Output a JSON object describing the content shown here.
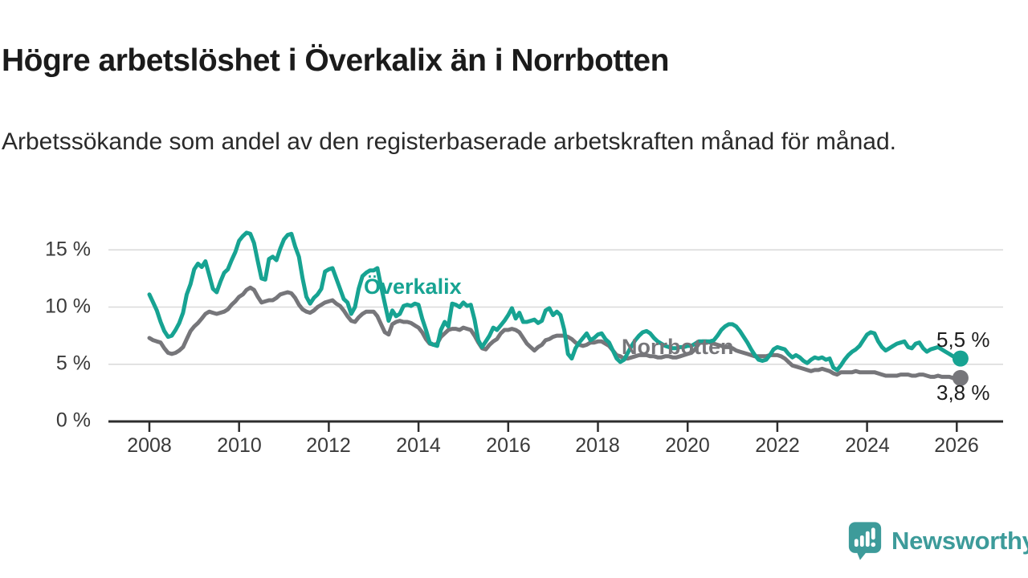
{
  "title": "Högre arbetslöshet i Överkalix än i Norrbotten",
  "subtitle": "Arbetssökande som andel av den registerbaserade arbetskraften månad för månad.",
  "branding": {
    "logo_text": "Newsworthy",
    "logo_color": "#3d9b9a"
  },
  "chart_data": {
    "type": "line",
    "title": "Högre arbetslöshet i Överkalix än i Norrbotten",
    "subtitle": "Arbetssökande som andel av den registerbaserade arbetskraften månad för månad.",
    "x_unit": "month",
    "x_start": "2008-01",
    "x_end": "2026-02",
    "x_ticks": [
      "2008",
      "2010",
      "2012",
      "2014",
      "2016",
      "2018",
      "2020",
      "2022",
      "2024",
      "2026"
    ],
    "x_tick_values": [
      2008,
      2010,
      2012,
      2014,
      2016,
      2018,
      2020,
      2022,
      2024,
      2026
    ],
    "y_ticks": [
      "15 %",
      "10 %",
      "5 %",
      "0 %"
    ],
    "y_tick_values": [
      15,
      10,
      5,
      0
    ],
    "ylim": [
      0,
      17
    ],
    "grid": "horizontal",
    "legend": "inline-labels",
    "colors": {
      "overkalix": "#17a392",
      "norrbotten": "#76767a",
      "grid": "#d9d9d9",
      "axis": "#2d2d2d"
    },
    "series": [
      {
        "name": "Överkalix",
        "color": "#17a392",
        "end_label": "5,5 %",
        "last_value": 5.5,
        "values": [
          11.1,
          10.4,
          9.7,
          8.7,
          7.9,
          7.4,
          7.5,
          8.0,
          8.6,
          9.5,
          11.1,
          12.0,
          13.3,
          13.8,
          13.5,
          14.0,
          12.8,
          11.6,
          11.3,
          12.2,
          13.0,
          13.3,
          14.1,
          14.8,
          15.8,
          16.2,
          16.5,
          16.4,
          15.6,
          14.0,
          12.5,
          12.4,
          14.2,
          14.4,
          14.1,
          15.1,
          15.9,
          16.3,
          16.4,
          15.3,
          14.4,
          12.5,
          10.9,
          10.3,
          10.8,
          11.1,
          11.6,
          13.1,
          13.3,
          13.4,
          12.5,
          11.6,
          10.7,
          10.4,
          9.4,
          10.0,
          11.6,
          12.7,
          13.0,
          13.2,
          13.2,
          13.4,
          11.8,
          10.3,
          8.8,
          9.7,
          9.2,
          9.4,
          10.1,
          10.2,
          10.1,
          10.3,
          10.2,
          9.0,
          8.0,
          6.9,
          6.7,
          6.6,
          8.0,
          8.7,
          8.3,
          10.3,
          10.2,
          10.0,
          10.4,
          10.1,
          10.2,
          8.9,
          7.1,
          6.5,
          7.0,
          7.5,
          8.2,
          8.0,
          8.4,
          8.8,
          9.3,
          9.9,
          9.0,
          9.5,
          8.7,
          8.7,
          8.8,
          8.9,
          8.6,
          8.8,
          9.7,
          9.9,
          9.3,
          9.6,
          9.3,
          8.0,
          5.9,
          5.5,
          6.4,
          6.9,
          7.3,
          7.7,
          7.1,
          7.3,
          7.6,
          7.7,
          7.2,
          6.9,
          6.2,
          5.5,
          5.2,
          5.4,
          6.0,
          6.6,
          7.1,
          7.5,
          7.8,
          7.9,
          7.7,
          7.3,
          7.0,
          6.8,
          6.6,
          6.5,
          6.4,
          6.4,
          6.5,
          6.5,
          6.6,
          6.6,
          6.8,
          7.0,
          7.0,
          7.0,
          7.0,
          7.1,
          7.5,
          8.0,
          8.3,
          8.5,
          8.5,
          8.3,
          7.9,
          7.4,
          6.9,
          6.3,
          5.8,
          5.4,
          5.3,
          5.4,
          5.8,
          6.3,
          6.5,
          6.4,
          6.3,
          5.9,
          5.6,
          5.8,
          5.6,
          5.3,
          5.1,
          5.4,
          5.6,
          5.5,
          5.6,
          5.4,
          5.5,
          4.7,
          4.5,
          4.9,
          5.4,
          5.8,
          6.1,
          6.3,
          6.6,
          7.1,
          7.6,
          7.8,
          7.7,
          7.0,
          6.5,
          6.2,
          6.4,
          6.6,
          6.8,
          6.9,
          7.0,
          6.5,
          6.4,
          6.8,
          6.9,
          6.4,
          6.1,
          6.3,
          6.4,
          6.5,
          6.3,
          6.1,
          5.9,
          5.7,
          5.6,
          5.5
        ]
      },
      {
        "name": "Norrbotten",
        "color": "#76767a",
        "end_label": "3,8 %",
        "last_value": 3.8,
        "values": [
          7.3,
          7.1,
          7.0,
          6.9,
          6.4,
          6.0,
          5.9,
          6.0,
          6.2,
          6.5,
          7.2,
          7.9,
          8.3,
          8.6,
          9.0,
          9.4,
          9.6,
          9.5,
          9.4,
          9.5,
          9.6,
          9.8,
          10.2,
          10.5,
          10.9,
          11.1,
          11.5,
          11.7,
          11.5,
          10.9,
          10.4,
          10.5,
          10.6,
          10.6,
          10.8,
          11.1,
          11.2,
          11.3,
          11.2,
          10.8,
          10.2,
          9.8,
          9.6,
          9.5,
          9.7,
          10.0,
          10.2,
          10.4,
          10.5,
          10.6,
          10.3,
          10.1,
          9.7,
          9.2,
          8.8,
          8.7,
          9.1,
          9.4,
          9.6,
          9.6,
          9.6,
          9.2,
          8.5,
          7.8,
          7.6,
          8.5,
          8.7,
          8.8,
          8.7,
          8.7,
          8.6,
          8.4,
          8.2,
          7.8,
          7.2,
          6.8,
          6.7,
          6.8,
          7.4,
          7.7,
          8.0,
          8.1,
          8.1,
          8.0,
          8.2,
          8.1,
          8.0,
          7.5,
          6.9,
          6.4,
          6.3,
          6.7,
          7.0,
          7.2,
          7.7,
          8.0,
          8.0,
          8.1,
          8.0,
          7.8,
          7.3,
          6.8,
          6.5,
          6.2,
          6.5,
          6.7,
          7.1,
          7.2,
          7.4,
          7.5,
          7.5,
          7.5,
          7.4,
          7.2,
          6.9,
          6.7,
          6.6,
          6.7,
          6.9,
          6.9,
          7.0,
          7.0,
          6.8,
          6.6,
          6.2,
          5.8,
          5.7,
          5.5,
          5.5,
          5.6,
          5.7,
          5.8,
          5.8,
          5.8,
          5.7,
          5.7,
          5.6,
          5.6,
          5.7,
          5.7,
          5.6,
          5.6,
          5.7,
          5.8,
          5.9,
          6.0,
          6.3,
          6.8,
          7.0,
          7.0,
          6.9,
          6.8,
          6.7,
          6.6,
          6.5,
          6.5,
          6.4,
          6.2,
          6.1,
          6.0,
          5.9,
          5.8,
          5.7,
          5.7,
          5.7,
          5.7,
          5.8,
          5.8,
          5.8,
          5.7,
          5.5,
          5.2,
          4.9,
          4.8,
          4.7,
          4.6,
          4.5,
          4.4,
          4.5,
          4.5,
          4.6,
          4.5,
          4.4,
          4.2,
          4.1,
          4.3,
          4.3,
          4.3,
          4.3,
          4.4,
          4.3,
          4.3,
          4.3,
          4.3,
          4.3,
          4.2,
          4.1,
          4.0,
          4.0,
          4.0,
          4.0,
          4.1,
          4.1,
          4.1,
          4.0,
          4.0,
          4.1,
          4.1,
          4.0,
          3.9,
          3.9,
          4.0,
          3.9,
          3.9,
          3.9,
          3.8,
          3.9,
          3.8
        ]
      }
    ]
  }
}
